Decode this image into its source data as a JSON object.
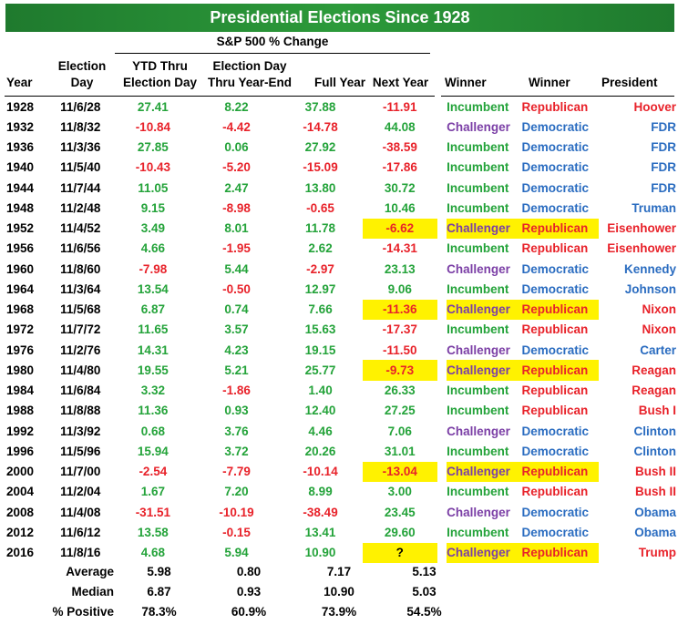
{
  "title": "Presidential Elections Since 1928",
  "sp_header": "S&P 500 % Change",
  "headers": {
    "year": "Year",
    "election_day_1": "Election",
    "election_day_2": "Day",
    "ytd_1": "YTD Thru",
    "ytd_2": "Election Day",
    "ed_1": "Election Day",
    "ed_2": "Thru Year-End",
    "full_year": "Full Year",
    "next_year": "Next Year",
    "winner1": "Winner",
    "winner2": "Winner",
    "president": "President"
  },
  "rows": [
    {
      "year": "1928",
      "day": "11/6/28",
      "ytd": "27.41",
      "ed": "8.22",
      "fy": "37.88",
      "ny": "-11.91",
      "w1": "Incumbent",
      "w2": "Republican",
      "pres": "Hoover",
      "hl": false
    },
    {
      "year": "1932",
      "day": "11/8/32",
      "ytd": "-10.84",
      "ed": "-4.42",
      "fy": "-14.78",
      "ny": "44.08",
      "w1": "Challenger",
      "w2": "Democratic",
      "pres": "FDR",
      "hl": false
    },
    {
      "year": "1936",
      "day": "11/3/36",
      "ytd": "27.85",
      "ed": "0.06",
      "fy": "27.92",
      "ny": "-38.59",
      "w1": "Incumbent",
      "w2": "Democratic",
      "pres": "FDR",
      "hl": false
    },
    {
      "year": "1940",
      "day": "11/5/40",
      "ytd": "-10.43",
      "ed": "-5.20",
      "fy": "-15.09",
      "ny": "-17.86",
      "w1": "Incumbent",
      "w2": "Democratic",
      "pres": "FDR",
      "hl": false
    },
    {
      "year": "1944",
      "day": "11/7/44",
      "ytd": "11.05",
      "ed": "2.47",
      "fy": "13.80",
      "ny": "30.72",
      "w1": "Incumbent",
      "w2": "Democratic",
      "pres": "FDR",
      "hl": false
    },
    {
      "year": "1948",
      "day": "11/2/48",
      "ytd": "9.15",
      "ed": "-8.98",
      "fy": "-0.65",
      "ny": "10.46",
      "w1": "Incumbent",
      "w2": "Democratic",
      "pres": "Truman",
      "hl": false
    },
    {
      "year": "1952",
      "day": "11/4/52",
      "ytd": "3.49",
      "ed": "8.01",
      "fy": "11.78",
      "ny": "-6.62",
      "w1": "Challenger",
      "w2": "Republican",
      "pres": "Eisenhower",
      "hl": true
    },
    {
      "year": "1956",
      "day": "11/6/56",
      "ytd": "4.66",
      "ed": "-1.95",
      "fy": "2.62",
      "ny": "-14.31",
      "w1": "Incumbent",
      "w2": "Republican",
      "pres": "Eisenhower",
      "hl": false
    },
    {
      "year": "1960",
      "day": "11/8/60",
      "ytd": "-7.98",
      "ed": "5.44",
      "fy": "-2.97",
      "ny": "23.13",
      "w1": "Challenger",
      "w2": "Democratic",
      "pres": "Kennedy",
      "hl": false
    },
    {
      "year": "1964",
      "day": "11/3/64",
      "ytd": "13.54",
      "ed": "-0.50",
      "fy": "12.97",
      "ny": "9.06",
      "w1": "Incumbent",
      "w2": "Democratic",
      "pres": "Johnson",
      "hl": false
    },
    {
      "year": "1968",
      "day": "11/5/68",
      "ytd": "6.87",
      "ed": "0.74",
      "fy": "7.66",
      "ny": "-11.36",
      "w1": "Challenger",
      "w2": "Republican",
      "pres": "Nixon",
      "hl": true
    },
    {
      "year": "1972",
      "day": "11/7/72",
      "ytd": "11.65",
      "ed": "3.57",
      "fy": "15.63",
      "ny": "-17.37",
      "w1": "Incumbent",
      "w2": "Republican",
      "pres": "Nixon",
      "hl": false
    },
    {
      "year": "1976",
      "day": "11/2/76",
      "ytd": "14.31",
      "ed": "4.23",
      "fy": "19.15",
      "ny": "-11.50",
      "w1": "Challenger",
      "w2": "Democratic",
      "pres": "Carter",
      "hl": false
    },
    {
      "year": "1980",
      "day": "11/4/80",
      "ytd": "19.55",
      "ed": "5.21",
      "fy": "25.77",
      "ny": "-9.73",
      "w1": "Challenger",
      "w2": "Republican",
      "pres": "Reagan",
      "hl": true
    },
    {
      "year": "1984",
      "day": "11/6/84",
      "ytd": "3.32",
      "ed": "-1.86",
      "fy": "1.40",
      "ny": "26.33",
      "w1": "Incumbent",
      "w2": "Republican",
      "pres": "Reagan",
      "hl": false
    },
    {
      "year": "1988",
      "day": "11/8/88",
      "ytd": "11.36",
      "ed": "0.93",
      "fy": "12.40",
      "ny": "27.25",
      "w1": "Incumbent",
      "w2": "Republican",
      "pres": "Bush I",
      "hl": false
    },
    {
      "year": "1992",
      "day": "11/3/92",
      "ytd": "0.68",
      "ed": "3.76",
      "fy": "4.46",
      "ny": "7.06",
      "w1": "Challenger",
      "w2": "Democratic",
      "pres": "Clinton",
      "hl": false
    },
    {
      "year": "1996",
      "day": "11/5/96",
      "ytd": "15.94",
      "ed": "3.72",
      "fy": "20.26",
      "ny": "31.01",
      "w1": "Incumbent",
      "w2": "Democratic",
      "pres": "Clinton",
      "hl": false
    },
    {
      "year": "2000",
      "day": "11/7/00",
      "ytd": "-2.54",
      "ed": "-7.79",
      "fy": "-10.14",
      "ny": "-13.04",
      "w1": "Challenger",
      "w2": "Republican",
      "pres": "Bush II",
      "hl": true
    },
    {
      "year": "2004",
      "day": "11/2/04",
      "ytd": "1.67",
      "ed": "7.20",
      "fy": "8.99",
      "ny": "3.00",
      "w1": "Incumbent",
      "w2": "Republican",
      "pres": "Bush II",
      "hl": false
    },
    {
      "year": "2008",
      "day": "11/4/08",
      "ytd": "-31.51",
      "ed": "-10.19",
      "fy": "-38.49",
      "ny": "23.45",
      "w1": "Challenger",
      "w2": "Democratic",
      "pres": "Obama",
      "hl": false
    },
    {
      "year": "2012",
      "day": "11/6/12",
      "ytd": "13.58",
      "ed": "-0.15",
      "fy": "13.41",
      "ny": "29.60",
      "w1": "Incumbent",
      "w2": "Democratic",
      "pres": "Obama",
      "hl": false
    },
    {
      "year": "2016",
      "day": "11/8/16",
      "ytd": "4.68",
      "ed": "5.94",
      "fy": "10.90",
      "ny": "?",
      "w1": "Challenger",
      "w2": "Republican",
      "pres": "Trump",
      "hl": true
    }
  ],
  "summary": [
    {
      "label": "Average",
      "ytd": "5.98",
      "ed": "0.80",
      "fy": "7.17",
      "ny": "5.13"
    },
    {
      "label": "Median",
      "ytd": "6.87",
      "ed": "0.93",
      "fy": "10.90",
      "ny": "5.03"
    },
    {
      "label": "% Positive",
      "ytd": "78.3%",
      "ed": "60.9%",
      "fy": "73.9%",
      "ny": "54.5%"
    }
  ],
  "colors": {
    "positive": "#24a33a",
    "negative": "#e8222a",
    "incumbent": "#24a33a",
    "challenger": "#7b3fa6",
    "republican": "#e8222a",
    "democratic": "#2a6cc0",
    "highlight": "#fff200",
    "title_bg": "#2c9a3a"
  }
}
